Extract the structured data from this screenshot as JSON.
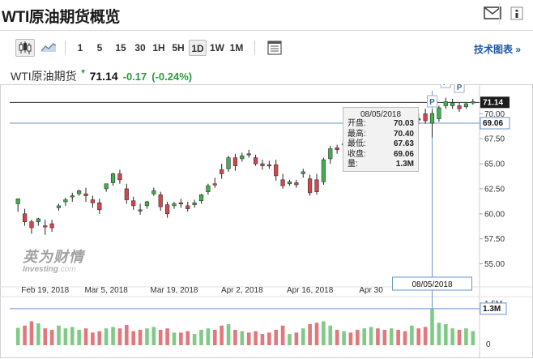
{
  "header": {
    "title": "WTI原油期货概览"
  },
  "toolbar": {
    "intervals": [
      "1",
      "5",
      "15",
      "30",
      "1H",
      "5H",
      "1D",
      "1W",
      "1M"
    ],
    "active_interval": "1D",
    "technical_link": "技术图表 »"
  },
  "quote": {
    "name": "WTI原油期货",
    "price": "71.14",
    "change": "-0.17",
    "change_pct": "(-0.24%)",
    "arrow": "▼"
  },
  "watermark": {
    "cn": "英为财情",
    "en": "Investing",
    "suffix": ".com"
  },
  "tooltip": {
    "date": "08/05/2018",
    "rows": [
      {
        "label": "开盘:",
        "value": "70.03"
      },
      {
        "label": "最高:",
        "value": "70.40"
      },
      {
        "label": "最低:",
        "value": "67.63"
      },
      {
        "label": "收盘:",
        "value": "69.06"
      },
      {
        "label": "量:",
        "value": "1.3M"
      }
    ]
  },
  "crosshair": {
    "date_label": "08/05/2018",
    "price_label": "69.06",
    "volume_label": "1.3M"
  },
  "last_price_label": "71.14",
  "colors": {
    "up": "#3cb34a",
    "down": "#d9434a",
    "vol_up": "#7fcb85",
    "vol_down": "#e2777c",
    "link": "#1d5aa5",
    "crosshair": "#6b95c9"
  },
  "chart_data": {
    "type": "candlestick",
    "title": "",
    "price_axis": {
      "ticks": [
        "55.00",
        "57.50",
        "60.00",
        "62.50",
        "65.00",
        "67.50",
        "70.00"
      ],
      "ylim": [
        53.5,
        72.3
      ]
    },
    "x_axis": {
      "ticks": [
        "Feb 19, 2018",
        "Mar 5, 2018",
        "Mar 19, 2018",
        "Apr 2, 2018",
        "Apr 16, 2018",
        "Apr 30"
      ]
    },
    "volume_axis": {
      "ticks": [
        "1.5M",
        "0"
      ]
    },
    "last_price": 71.14,
    "candles": [
      {
        "o": 61.0,
        "h": 61.5,
        "c": 61.5,
        "l": 60.2,
        "v": 0.62,
        "up": true
      },
      {
        "o": 60.0,
        "h": 60.5,
        "c": 59.2,
        "l": 58.8,
        "v": 0.7,
        "up": false
      },
      {
        "o": 59.2,
        "h": 59.4,
        "c": 58.6,
        "l": 58.0,
        "v": 0.85,
        "up": false
      },
      {
        "o": 59.2,
        "h": 59.6,
        "c": 59.5,
        "l": 58.8,
        "v": 0.78,
        "up": true
      },
      {
        "o": 58.8,
        "h": 59.4,
        "c": 58.8,
        "l": 57.9,
        "v": 0.6,
        "up": false
      },
      {
        "o": 59.0,
        "h": 59.4,
        "c": 58.6,
        "l": 58.2,
        "v": 0.55,
        "up": false
      },
      {
        "o": 60.6,
        "h": 61.0,
        "c": 60.8,
        "l": 60.3,
        "v": 0.7,
        "up": true
      },
      {
        "o": 61.2,
        "h": 61.6,
        "c": 61.4,
        "l": 60.8,
        "v": 0.6,
        "up": true
      },
      {
        "o": 61.8,
        "h": 62.1,
        "c": 61.8,
        "l": 61.2,
        "v": 0.65,
        "up": true
      },
      {
        "o": 62.0,
        "h": 62.4,
        "c": 62.3,
        "l": 61.8,
        "v": 0.55,
        "up": true
      },
      {
        "o": 62.0,
        "h": 62.6,
        "c": 61.8,
        "l": 61.2,
        "v": 0.6,
        "up": false
      },
      {
        "o": 61.4,
        "h": 61.8,
        "c": 61.1,
        "l": 60.6,
        "v": 0.45,
        "up": false
      },
      {
        "o": 61.1,
        "h": 61.5,
        "c": 60.4,
        "l": 60.0,
        "v": 0.5,
        "up": false
      },
      {
        "o": 62.5,
        "h": 63.0,
        "c": 63.0,
        "l": 62.2,
        "v": 0.6,
        "up": true
      },
      {
        "o": 63.1,
        "h": 64.1,
        "c": 64.0,
        "l": 62.8,
        "v": 0.65,
        "up": true
      },
      {
        "o": 64.0,
        "h": 64.4,
        "c": 63.4,
        "l": 63.0,
        "v": 0.6,
        "up": false
      },
      {
        "o": 62.5,
        "h": 63.0,
        "c": 61.4,
        "l": 61.0,
        "v": 0.72,
        "up": false
      },
      {
        "o": 61.3,
        "h": 61.7,
        "c": 60.8,
        "l": 60.4,
        "v": 0.5,
        "up": false
      },
      {
        "o": 60.4,
        "h": 61.0,
        "c": 60.4,
        "l": 59.9,
        "v": 0.55,
        "up": false
      },
      {
        "o": 60.8,
        "h": 61.3,
        "c": 61.2,
        "l": 60.5,
        "v": 0.6,
        "up": true
      },
      {
        "o": 62.0,
        "h": 62.6,
        "c": 62.3,
        "l": 61.8,
        "v": 0.65,
        "up": true
      },
      {
        "o": 61.9,
        "h": 62.2,
        "c": 60.7,
        "l": 60.3,
        "v": 0.55,
        "up": false
      },
      {
        "o": 60.9,
        "h": 61.2,
        "c": 60.0,
        "l": 59.6,
        "v": 0.6,
        "up": false
      },
      {
        "o": 60.8,
        "h": 61.2,
        "c": 61.0,
        "l": 60.5,
        "v": 0.45,
        "up": true
      },
      {
        "o": 61.1,
        "h": 61.5,
        "c": 61.0,
        "l": 60.6,
        "v": 0.45,
        "up": false
      },
      {
        "o": 60.8,
        "h": 61.2,
        "c": 60.5,
        "l": 60.2,
        "v": 0.5,
        "up": false
      },
      {
        "o": 60.9,
        "h": 61.4,
        "c": 61.1,
        "l": 60.6,
        "v": 0.4,
        "up": true
      },
      {
        "o": 61.3,
        "h": 62.0,
        "c": 61.9,
        "l": 61.0,
        "v": 0.55,
        "up": true
      },
      {
        "o": 62.2,
        "h": 63.0,
        "c": 62.8,
        "l": 61.9,
        "v": 0.6,
        "up": true
      },
      {
        "o": 63.0,
        "h": 63.6,
        "c": 63.0,
        "l": 62.6,
        "v": 0.55,
        "up": false
      },
      {
        "o": 64.0,
        "h": 65.0,
        "c": 64.4,
        "l": 63.5,
        "v": 0.7,
        "up": false
      },
      {
        "o": 64.5,
        "h": 65.8,
        "c": 65.6,
        "l": 64.2,
        "v": 0.75,
        "up": true
      },
      {
        "o": 65.6,
        "h": 66.0,
        "c": 64.8,
        "l": 64.3,
        "v": 0.55,
        "up": false
      },
      {
        "o": 65.5,
        "h": 66.1,
        "c": 65.8,
        "l": 65.2,
        "v": 0.5,
        "up": true
      },
      {
        "o": 66.0,
        "h": 66.4,
        "c": 66.0,
        "l": 65.6,
        "v": 0.45,
        "up": false
      },
      {
        "o": 65.6,
        "h": 65.9,
        "c": 65.0,
        "l": 64.8,
        "v": 0.5,
        "up": false
      },
      {
        "o": 65.0,
        "h": 65.4,
        "c": 64.8,
        "l": 64.4,
        "v": 0.4,
        "up": false
      },
      {
        "o": 64.9,
        "h": 65.3,
        "c": 64.9,
        "l": 64.5,
        "v": 0.45,
        "up": false
      },
      {
        "o": 64.9,
        "h": 65.4,
        "c": 63.8,
        "l": 63.3,
        "v": 0.55,
        "up": false
      },
      {
        "o": 63.4,
        "h": 64.0,
        "c": 62.8,
        "l": 62.5,
        "v": 0.7,
        "up": false
      },
      {
        "o": 63.0,
        "h": 63.4,
        "c": 63.2,
        "l": 62.8,
        "v": 0.4,
        "up": true
      },
      {
        "o": 63.1,
        "h": 63.4,
        "c": 62.9,
        "l": 62.6,
        "v": 0.45,
        "up": false
      },
      {
        "o": 64.0,
        "h": 64.5,
        "c": 64.2,
        "l": 63.6,
        "v": 0.6,
        "up": true
      },
      {
        "o": 63.5,
        "h": 63.9,
        "c": 62.1,
        "l": 61.8,
        "v": 0.75,
        "up": false
      },
      {
        "o": 62.2,
        "h": 64.0,
        "c": 63.4,
        "l": 61.9,
        "v": 0.8,
        "up": false
      },
      {
        "o": 63.2,
        "h": 65.6,
        "c": 65.4,
        "l": 62.9,
        "v": 0.85,
        "up": true
      },
      {
        "o": 65.5,
        "h": 66.8,
        "c": 66.5,
        "l": 65.0,
        "v": 0.7,
        "up": true
      },
      {
        "o": 66.6,
        "h": 66.9,
        "c": 66.4,
        "l": 66.0,
        "v": 0.55,
        "up": false
      },
      {
        "o": 66.9,
        "h": 67.3,
        "c": 67.0,
        "l": 66.6,
        "v": 0.5,
        "up": true
      },
      {
        "o": 67.2,
        "h": 67.6,
        "c": 67.2,
        "l": 66.8,
        "v": 0.45,
        "up": false
      },
      {
        "o": 66.6,
        "h": 67.0,
        "c": 66.3,
        "l": 65.8,
        "v": 0.55,
        "up": false
      },
      {
        "o": 66.8,
        "h": 67.6,
        "c": 67.4,
        "l": 66.5,
        "v": 0.6,
        "up": true
      },
      {
        "o": 68.0,
        "h": 68.5,
        "c": 68.2,
        "l": 67.6,
        "v": 0.65,
        "up": true
      },
      {
        "o": 68.2,
        "h": 68.6,
        "c": 68.0,
        "l": 67.8,
        "v": 0.6,
        "up": false
      },
      {
        "o": 68.0,
        "h": 68.4,
        "c": 67.9,
        "l": 67.6,
        "v": 0.55,
        "up": false
      },
      {
        "o": 68.1,
        "h": 68.8,
        "c": 68.6,
        "l": 67.9,
        "v": 0.6,
        "up": true
      },
      {
        "o": 68.6,
        "h": 69.0,
        "c": 68.0,
        "l": 67.6,
        "v": 0.55,
        "up": false
      },
      {
        "o": 68.0,
        "h": 68.6,
        "c": 67.9,
        "l": 67.6,
        "v": 0.5,
        "up": false
      },
      {
        "o": 68.6,
        "h": 69.6,
        "c": 69.5,
        "l": 68.3,
        "v": 0.7,
        "up": true
      },
      {
        "o": 69.5,
        "h": 70.0,
        "c": 69.4,
        "l": 68.9,
        "v": 0.6,
        "up": false
      },
      {
        "o": 70.0,
        "h": 70.5,
        "c": 69.3,
        "l": 69.0,
        "v": 0.65,
        "up": false
      },
      {
        "o": 70.03,
        "h": 70.4,
        "c": 69.06,
        "l": 67.63,
        "v": 1.3,
        "up": true,
        "highlight": true
      },
      {
        "o": 69.5,
        "h": 70.8,
        "c": 70.6,
        "l": 69.2,
        "v": 0.8,
        "up": true
      },
      {
        "o": 70.8,
        "h": 71.6,
        "c": 71.2,
        "l": 70.5,
        "v": 0.75,
        "up": true
      },
      {
        "o": 71.1,
        "h": 71.5,
        "c": 70.8,
        "l": 70.5,
        "v": 0.6,
        "up": true
      },
      {
        "o": 70.8,
        "h": 71.1,
        "c": 70.5,
        "l": 70.2,
        "v": 0.55,
        "up": false
      },
      {
        "o": 70.7,
        "h": 71.1,
        "c": 71.0,
        "l": 70.5,
        "v": 0.6,
        "up": true
      },
      {
        "o": 71.2,
        "h": 71.5,
        "c": 71.2,
        "l": 70.9,
        "v": 0.5,
        "up": true
      }
    ],
    "markers": [
      {
        "index": 61,
        "label": "P"
      },
      {
        "index": 63,
        "label": "P"
      },
      {
        "index": 65,
        "label": "P"
      }
    ]
  }
}
